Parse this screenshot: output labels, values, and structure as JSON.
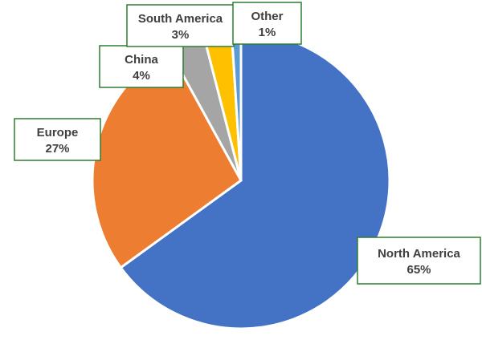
{
  "chart_data": {
    "type": "pie",
    "start_angle_deg": 0,
    "direction": "clockwise",
    "slices": [
      {
        "name": "North America",
        "value": 65,
        "percent_label": "65%",
        "color": "#4472C4"
      },
      {
        "name": "Europe",
        "value": 27,
        "percent_label": "27%",
        "color": "#ED7D31"
      },
      {
        "name": "China",
        "value": 4,
        "percent_label": "4%",
        "color": "#A5A5A5"
      },
      {
        "name": "South America",
        "value": 3,
        "percent_label": "3%",
        "color": "#FFC000"
      },
      {
        "name": "Other",
        "value": 1,
        "percent_label": "1%",
        "color": "#5B9BD5"
      }
    ],
    "legend": "none",
    "data_labels": "boxed callouts with name and percent"
  }
}
